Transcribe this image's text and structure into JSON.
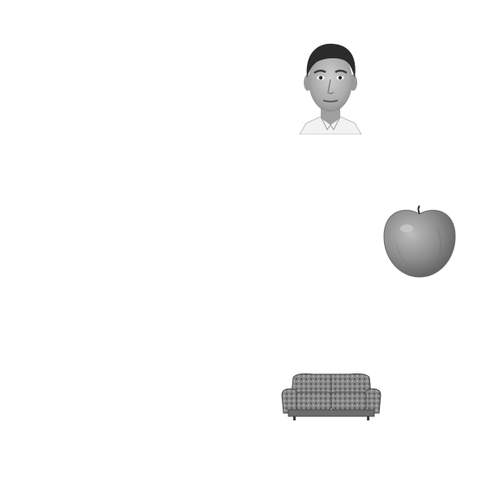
{
  "background_color": "#ffffff",
  "stimuli": [
    {
      "name": "face",
      "kind": "grayscale-photo"
    },
    {
      "name": "apple",
      "kind": "grayscale-photo"
    },
    {
      "name": "sofa",
      "kind": "grayscale-photo"
    }
  ]
}
